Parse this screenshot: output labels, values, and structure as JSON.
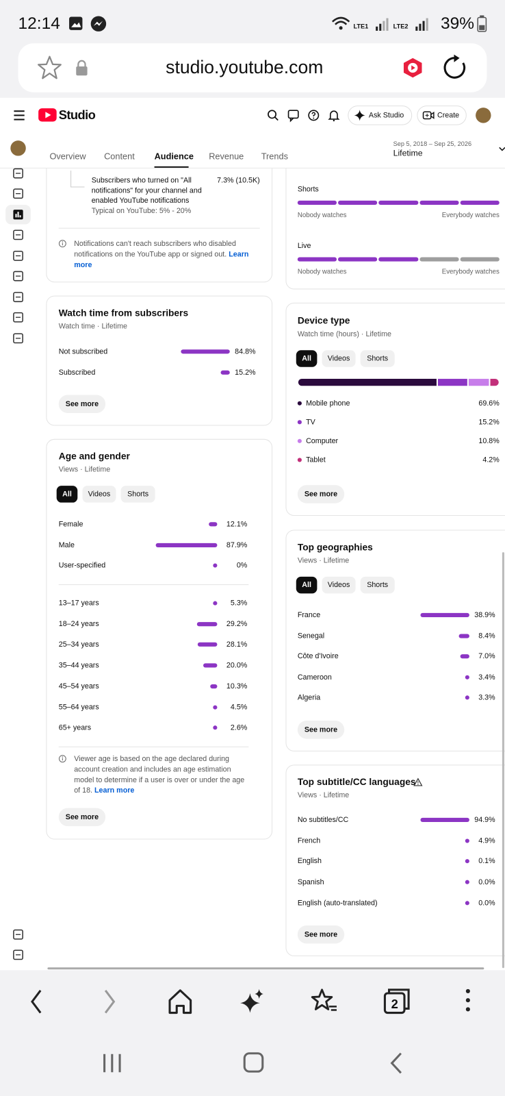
{
  "status_bar": {
    "time": "12:14",
    "signals": [
      "LTE1",
      "LTE2"
    ],
    "battery": "39%"
  },
  "browser": {
    "url": "studio.youtube.com",
    "tab_count": 2
  },
  "header": {
    "logo": "Studio",
    "ask": "Ask Studio",
    "create": "Create"
  },
  "tabs": {
    "items": [
      "Overview",
      "Content",
      "Audience",
      "Revenue",
      "Trends"
    ],
    "selected": 2
  },
  "date_range": {
    "dates": "Sep 5, 2018 – Sep 25, 2026",
    "period": "Lifetime"
  },
  "notifications": {
    "text": "Subscribers who turned on \"All notifications\" for your channel and enabled YouTube notifications",
    "value": "7.3% (10.5K)",
    "typical": "Typical on YouTube: 5% - 20%",
    "note": "Notifications can't reach subscribers who disabled notifications on the YouTube app or signed out.",
    "link": "Learn more"
  },
  "watch_time": {
    "title": "Watch time from subscribers",
    "subtitle": "Watch time · Lifetime",
    "rows": [
      {
        "label": "Not subscribed",
        "value": 84.8,
        "value_label": "84.8%"
      },
      {
        "label": "Subscribed",
        "value": 15.2,
        "value_label": "15.2%"
      }
    ],
    "button": "See more"
  },
  "age_gender": {
    "title": "Age and gender",
    "subtitle": "Views · Lifetime",
    "filters": [
      "All",
      "Videos",
      "Shorts"
    ],
    "selected": 0,
    "gender": [
      {
        "label": "Female",
        "value": 12.1,
        "value_label": "12.1%"
      },
      {
        "label": "Male",
        "value": 87.9,
        "value_label": "87.9%"
      },
      {
        "label": "User-specified",
        "value": 0,
        "value_label": "0%"
      }
    ],
    "age": [
      {
        "label": "13–17 years",
        "value": 5.3,
        "value_label": "5.3%"
      },
      {
        "label": "18–24 years",
        "value": 29.2,
        "value_label": "29.2%"
      },
      {
        "label": "25–34 years",
        "value": 28.1,
        "value_label": "28.1%"
      },
      {
        "label": "35–44 years",
        "value": 20.0,
        "value_label": "20.0%"
      },
      {
        "label": "45–54 years",
        "value": 10.3,
        "value_label": "10.3%"
      },
      {
        "label": "55–64 years",
        "value": 4.5,
        "value_label": "4.5%"
      },
      {
        "label": "65+ years",
        "value": 2.6,
        "value_label": "2.6%"
      }
    ],
    "note": "Viewer age is based on the age declared during account creation and includes an age estimation model to determine if a user is over or under the age of 18.",
    "link": "Learn more",
    "button": "See more"
  },
  "watch_scale": {
    "low": "Nobody watches",
    "high": "Everybody watches",
    "rows": [
      {
        "label": "Shorts",
        "segments": 5,
        "filled": 5
      },
      {
        "label": "Live",
        "segments": 5,
        "filled": 3
      }
    ]
  },
  "device_type": {
    "title": "Device type",
    "subtitle": "Watch time (hours) · Lifetime",
    "filters": [
      "All",
      "Videos",
      "Shorts"
    ],
    "selected": 0,
    "rows": [
      {
        "label": "Mobile phone",
        "value": 69.6,
        "value_label": "69.6%",
        "color": "#2b0a3d"
      },
      {
        "label": "TV",
        "value": 15.2,
        "value_label": "15.2%",
        "color": "#8c35c4"
      },
      {
        "label": "Computer",
        "value": 10.8,
        "value_label": "10.8%",
        "color": "#c77dea"
      },
      {
        "label": "Tablet",
        "value": 4.2,
        "value_label": "4.2%",
        "color": "#c2307a"
      }
    ],
    "button": "See more"
  },
  "geographies": {
    "title": "Top geographies",
    "subtitle": "Views · Lifetime",
    "filters": [
      "All",
      "Videos",
      "Shorts"
    ],
    "selected": 0,
    "rows": [
      {
        "label": "France",
        "value": 38.9,
        "value_label": "38.9%"
      },
      {
        "label": "Senegal",
        "value": 8.4,
        "value_label": "8.4%"
      },
      {
        "label": "Côte d'Ivoire",
        "value": 7.0,
        "value_label": "7.0%"
      },
      {
        "label": "Cameroon",
        "value": 3.4,
        "value_label": "3.4%"
      },
      {
        "label": "Algeria",
        "value": 3.3,
        "value_label": "3.3%"
      }
    ],
    "button": "See more"
  },
  "subtitles": {
    "title": "Top subtitle/CC languages",
    "subtitle": "Views · Lifetime",
    "rows": [
      {
        "label": "No subtitles/CC",
        "value": 94.9,
        "value_label": "94.9%"
      },
      {
        "label": "French",
        "value": 4.9,
        "value_label": "4.9%"
      },
      {
        "label": "English",
        "value": 0.1,
        "value_label": "0.1%"
      },
      {
        "label": "Spanish",
        "value": 0.0,
        "value_label": "0.0%"
      },
      {
        "label": "English (auto-translated)",
        "value": 0.0,
        "value_label": "0.0%"
      }
    ],
    "button": "See more"
  },
  "bar_color": "#8c35c4"
}
